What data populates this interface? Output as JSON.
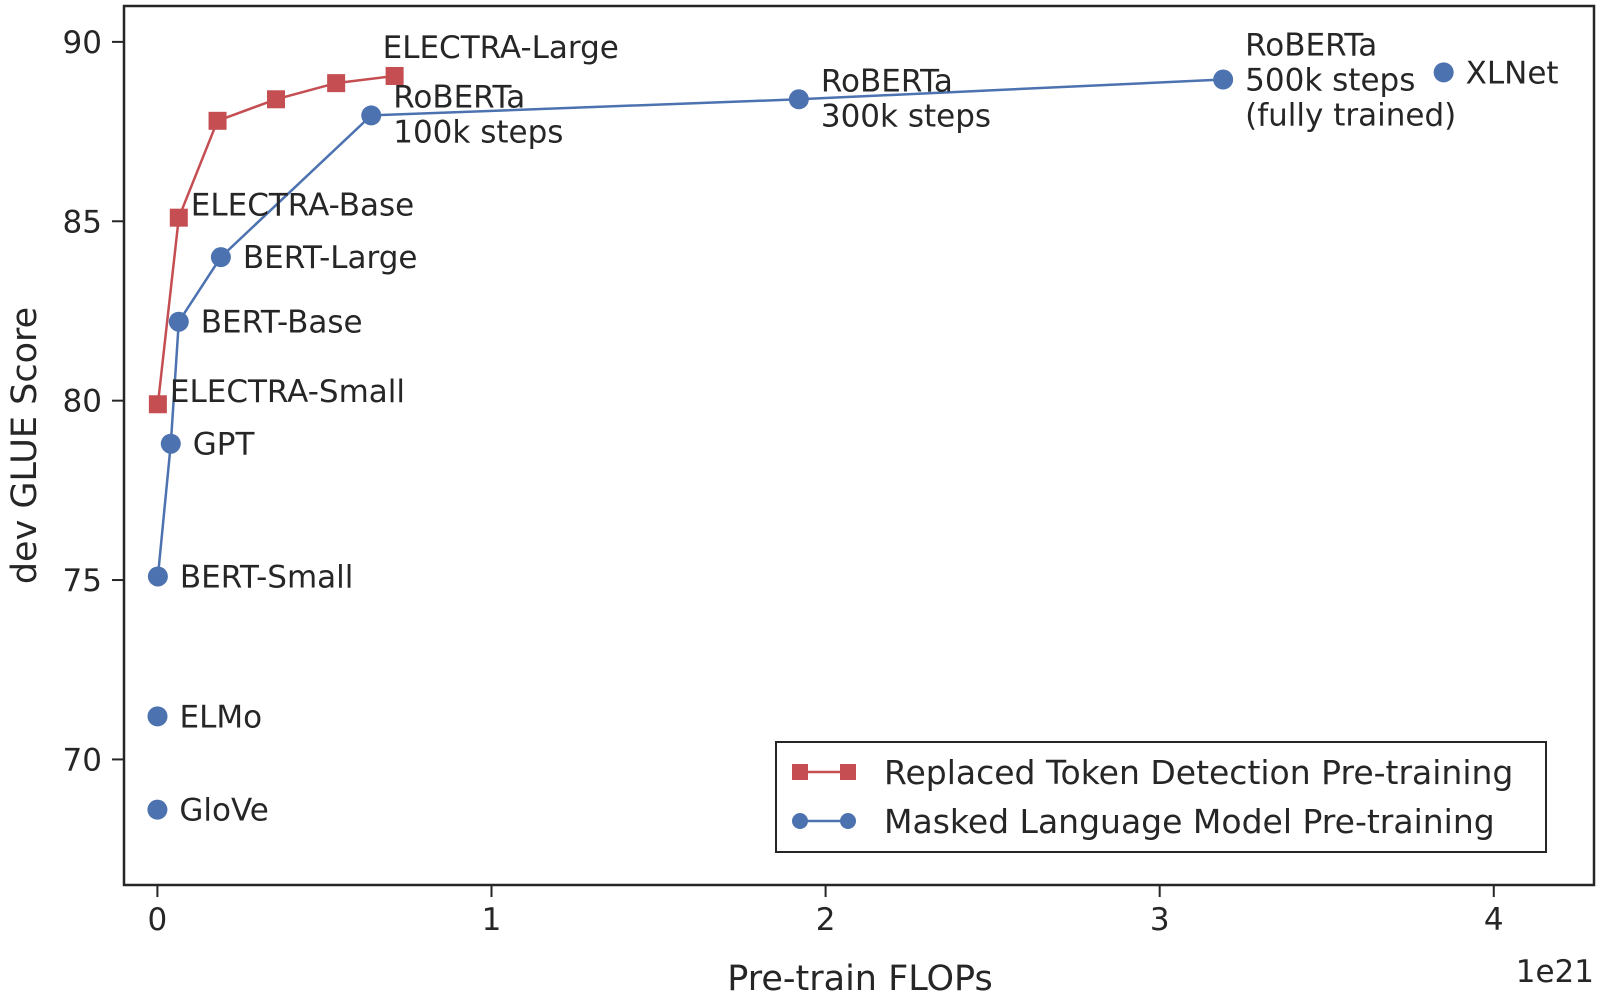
{
  "chart_data": {
    "type": "line",
    "xlabel": "Pre-train FLOPs",
    "ylabel": "dev GLUE Score",
    "x_offset_label": "1e21",
    "x_scale": 1e+21,
    "xlim": [
      -1e+20,
      4.3e+21
    ],
    "ylim": [
      66.5,
      91.0
    ],
    "xticks": [
      0,
      1e+21,
      2e+21,
      3e+21,
      4e+21
    ],
    "xtick_labels": [
      "0",
      "1",
      "2",
      "3",
      "4"
    ],
    "yticks": [
      70,
      75,
      80,
      85,
      90
    ],
    "ytick_labels": [
      "70",
      "75",
      "80",
      "85",
      "90"
    ],
    "grid": false,
    "legend_position": "bottom-right",
    "series": [
      {
        "name": "Replaced Token Detection Pre-training",
        "color": "#c44e52",
        "marker": "square",
        "connected": true,
        "points": [
          {
            "x": 1.4e+18,
            "y": 79.9,
            "label": "ELECTRA-Small"
          },
          {
            "x": 6.4e+19,
            "y": 85.1,
            "label": "ELECTRA-Base"
          },
          {
            "x": 1.8e+20,
            "y": 87.8,
            "label": ""
          },
          {
            "x": 3.55e+20,
            "y": 88.4,
            "label": ""
          },
          {
            "x": 5.35e+20,
            "y": 88.85,
            "label": ""
          },
          {
            "x": 7.1e+20,
            "y": 89.05,
            "label": "ELECTRA-Large"
          }
        ]
      },
      {
        "name": "Masked Language Model Pre-training",
        "color": "#4c72b0",
        "marker": "circle",
        "connected_count": 7,
        "points": [
          {
            "x": 1.4e+18,
            "y": 75.1,
            "label": "BERT-Small"
          },
          {
            "x": 4e+19,
            "y": 78.8,
            "label": "GPT"
          },
          {
            "x": 6.4e+19,
            "y": 82.2,
            "label": "BERT-Base"
          },
          {
            "x": 1.9e+20,
            "y": 84.0,
            "label": "BERT-Large"
          },
          {
            "x": 6.4e+20,
            "y": 87.95,
            "label": "RoBERTa\n100k steps"
          },
          {
            "x": 1.92e+21,
            "y": 88.4,
            "label": "RoBERTa\n300k steps"
          },
          {
            "x": 3.19e+21,
            "y": 88.95,
            "label": "RoBERTa\n500k steps\n(fully trained)"
          },
          {
            "x": 3.85e+21,
            "y": 89.15,
            "label": "XLNet"
          },
          {
            "x": 3e+17,
            "y": 71.2,
            "label": "ELMo"
          },
          {
            "x": 2e+16,
            "y": 68.6,
            "label": "GloVe"
          }
        ]
      }
    ]
  }
}
